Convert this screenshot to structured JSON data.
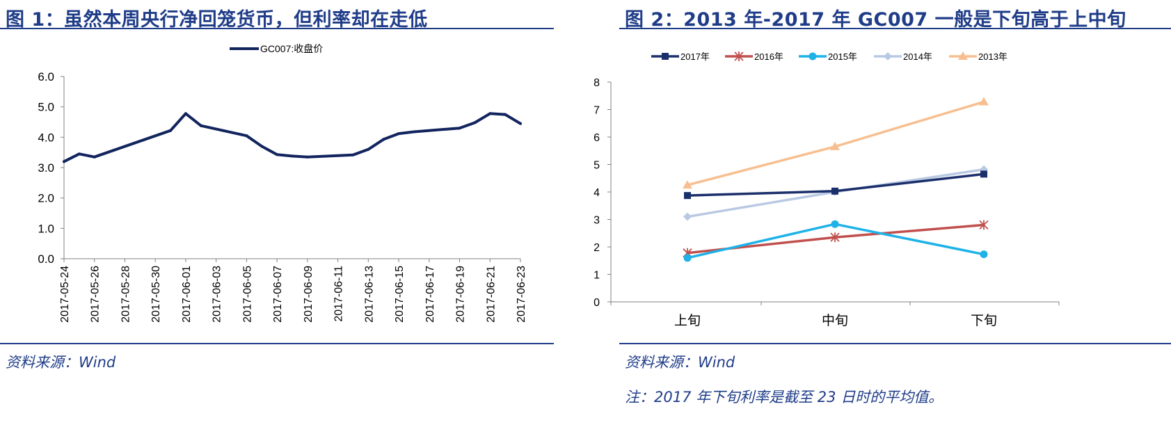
{
  "left": {
    "title": "图 1：虽然本周央行净回笼货币，但利率却在走低",
    "source": "资料来源：Wind"
  },
  "right": {
    "title": "图 2：2013 年-2017 年 GC007 一般是下旬高于上中旬",
    "source": "资料来源：Wind",
    "note": "注：2017 年下旬利率是截至 23 日时的平均值。"
  },
  "colors": {
    "title_blue": "#1f3c88",
    "gc007_line": "#12245e",
    "s2017": "#1b2f6b",
    "s2016": "#c0504d",
    "s2015": "#1eb2e8",
    "s2014": "#b9c9e3",
    "s2013": "#f7bf90"
  },
  "chart_data": [
    {
      "type": "line",
      "title": "",
      "legend": [
        "GC007:收盘价"
      ],
      "x": [
        "2017-05-24",
        "2017-05-25",
        "2017-05-26",
        "2017-05-31",
        "2017-06-01",
        "2017-06-02",
        "2017-06-05",
        "2017-06-06",
        "2017-06-07",
        "2017-06-08",
        "2017-06-09",
        "2017-06-12",
        "2017-06-13",
        "2017-06-14",
        "2017-06-15",
        "2017-06-16",
        "2017-06-19",
        "2017-06-20",
        "2017-06-21",
        "2017-06-22",
        "2017-06-23"
      ],
      "values": [
        3.2,
        3.45,
        3.35,
        4.22,
        4.78,
        4.38,
        4.05,
        3.7,
        3.43,
        3.38,
        3.35,
        3.42,
        3.6,
        3.93,
        4.12,
        4.18,
        4.3,
        4.48,
        4.78,
        4.75,
        4.45
      ],
      "xticks": [
        "2017-05-24",
        "2017-05-26",
        "2017-05-28",
        "2017-05-30",
        "2017-06-01",
        "2017-06-03",
        "2017-06-05",
        "2017-06-07",
        "2017-06-09",
        "2017-06-11",
        "2017-06-13",
        "2017-06-15",
        "2017-06-17",
        "2017-06-19",
        "2017-06-21",
        "2017-06-23"
      ],
      "yticks": [
        "0.0",
        "1.0",
        "2.0",
        "3.0",
        "4.0",
        "5.0",
        "6.0"
      ],
      "ylim": [
        0,
        6
      ],
      "xlabel": "",
      "ylabel": "",
      "grid": false,
      "legend_position": "top-center"
    },
    {
      "type": "line",
      "title": "",
      "categories": [
        "上旬",
        "中旬",
        "下旬"
      ],
      "series": [
        {
          "name": "2017年",
          "values": [
            3.87,
            4.03,
            4.65
          ],
          "marker": "square"
        },
        {
          "name": "2016年",
          "values": [
            1.78,
            2.35,
            2.8
          ],
          "marker": "asterisk"
        },
        {
          "name": "2015年",
          "values": [
            1.6,
            2.83,
            1.73
          ],
          "marker": "circle"
        },
        {
          "name": "2014年",
          "values": [
            3.1,
            4.0,
            4.82
          ],
          "marker": "diamond"
        },
        {
          "name": "2013年",
          "values": [
            4.25,
            5.65,
            7.28
          ],
          "marker": "triangle"
        }
      ],
      "yticks": [
        "0",
        "1",
        "2",
        "3",
        "4",
        "5",
        "6",
        "7",
        "8"
      ],
      "ylim": [
        0,
        8
      ],
      "xlabel": "",
      "ylabel": "",
      "grid": false,
      "legend_position": "top-center"
    }
  ]
}
